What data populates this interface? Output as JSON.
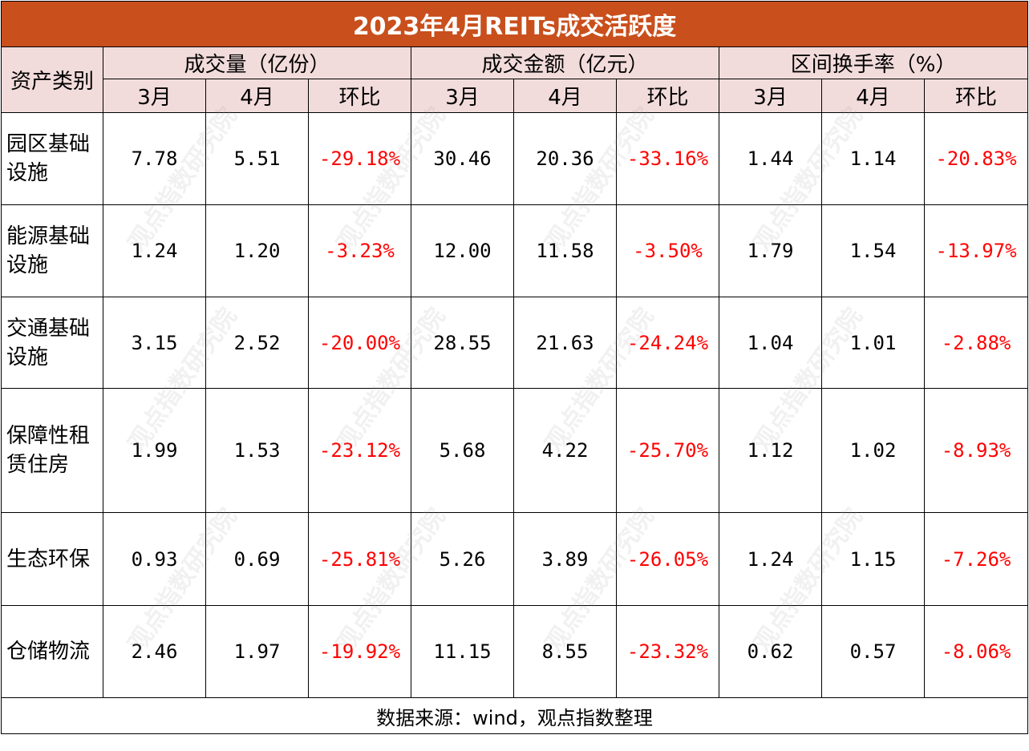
{
  "title": "2023年4月REITs成交活跃度",
  "header": {
    "category": "资产类别",
    "groups": [
      "成交量（亿份）",
      "成交金额（亿元）",
      "区间换手率（%）"
    ],
    "sub": [
      "3月",
      "4月",
      "环比",
      "3月",
      "4月",
      "环比",
      "3月",
      "4月",
      "环比"
    ]
  },
  "rows": [
    {
      "category": "园区基础设施",
      "vals": [
        "7.78",
        "5.51",
        "-29.18%",
        "30.46",
        "20.36",
        "-33.16%",
        "1.44",
        "1.14",
        "-20.83%"
      ]
    },
    {
      "category": "能源基础设施",
      "vals": [
        "1.24",
        "1.20",
        "-3.23%",
        "12.00",
        "11.58",
        "-3.50%",
        "1.79",
        "1.54",
        "-13.97%"
      ]
    },
    {
      "category": "交通基础设施",
      "vals": [
        "3.15",
        "2.52",
        "-20.00%",
        "28.55",
        "21.63",
        "-24.24%",
        "1.04",
        "1.01",
        "-2.88%"
      ]
    },
    {
      "category": "保障性租赁住房",
      "vals": [
        "1.99",
        "1.53",
        "-23.12%",
        "5.68",
        "4.22",
        "-25.70%",
        "1.12",
        "1.02",
        "-8.93%"
      ]
    },
    {
      "category": "生态环保",
      "vals": [
        "0.93",
        "0.69",
        "-25.81%",
        "5.26",
        "3.89",
        "-26.05%",
        "1.24",
        "1.15",
        "-7.26%"
      ]
    },
    {
      "category": "仓储物流",
      "vals": [
        "2.46",
        "1.97",
        "-19.92%",
        "11.15",
        "8.55",
        "-23.32%",
        "0.62",
        "0.57",
        "-8.06%"
      ]
    }
  ],
  "source": "数据来源：wind，观点指数整理",
  "watermark": "观点指数研究院",
  "colors": {
    "title_bg": "#c94f1c",
    "header_bg": "#f2dcdb",
    "negative": "#ff0000"
  }
}
